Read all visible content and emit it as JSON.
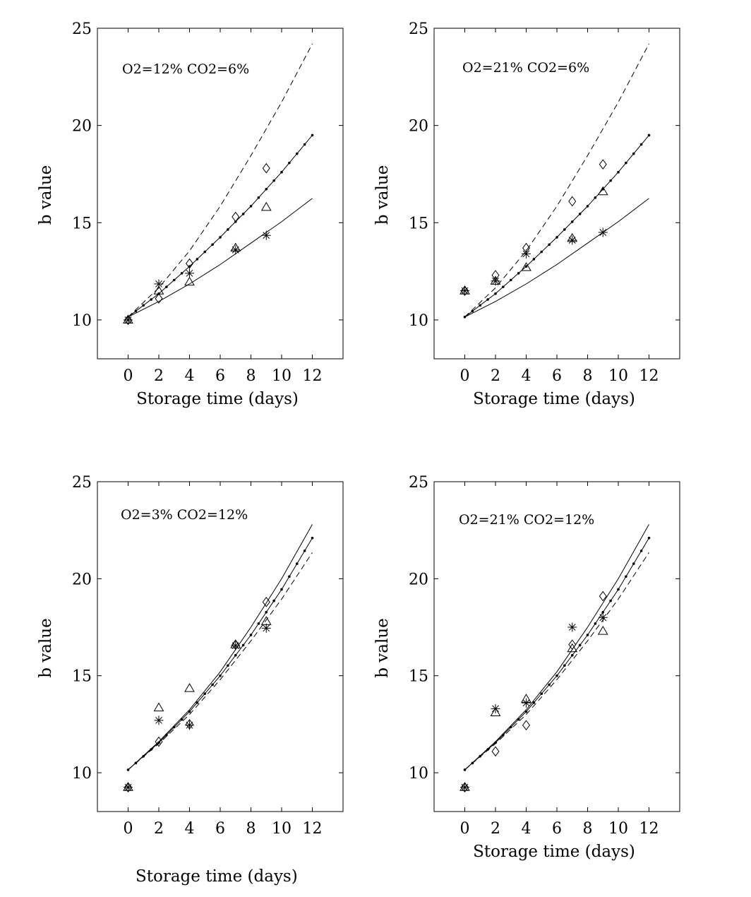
{
  "footer_label": "Storage time (days)",
  "chart_data": [
    {
      "type": "line",
      "annotation": "O2=12% CO2=6%",
      "xlabel": "Storage time (days)",
      "ylabel": "b value",
      "xlim": [
        -2,
        14
      ],
      "ylim": [
        8,
        25
      ],
      "xticks": [
        0,
        2,
        4,
        6,
        8,
        10,
        12
      ],
      "yticks": [
        10,
        15,
        20,
        25
      ],
      "model_lines": [
        {
          "style": "solid",
          "x": [
            0,
            2,
            4,
            6,
            8,
            10,
            12
          ],
          "y": [
            10.15,
            10.95,
            11.85,
            12.85,
            13.95,
            15.05,
            16.25
          ]
        },
        {
          "style": "dotted",
          "x": [
            0,
            2,
            4,
            6,
            8,
            10,
            12
          ],
          "y": [
            10.15,
            11.35,
            12.75,
            14.25,
            15.85,
            17.6,
            19.5
          ]
        },
        {
          "style": "dashed",
          "x": [
            0,
            2,
            4,
            6,
            8,
            10,
            12
          ],
          "y": [
            10.15,
            11.65,
            13.55,
            15.85,
            18.45,
            21.2,
            24.2
          ]
        }
      ],
      "observed": [
        {
          "marker": "diamond",
          "x": [
            0,
            2,
            4,
            7,
            9
          ],
          "y": [
            10.0,
            11.1,
            12.9,
            15.3,
            17.8
          ]
        },
        {
          "marker": "triangle",
          "x": [
            0,
            2,
            4,
            7,
            9
          ],
          "y": [
            10.0,
            11.5,
            11.95,
            13.7,
            15.8
          ]
        },
        {
          "marker": "asterisk",
          "x": [
            0,
            2,
            4,
            7,
            9
          ],
          "y": [
            10.0,
            11.85,
            12.4,
            13.6,
            14.35
          ]
        }
      ]
    },
    {
      "type": "line",
      "annotation": "O2=21% CO2=6%",
      "xlabel": "Storage time (days)",
      "ylabel": "b value",
      "xlim": [
        -2,
        14
      ],
      "ylim": [
        8,
        25
      ],
      "xticks": [
        0,
        2,
        4,
        6,
        8,
        10,
        12
      ],
      "yticks": [
        10,
        15,
        20,
        25
      ],
      "model_lines": [
        {
          "style": "solid",
          "x": [
            0,
            2,
            4,
            6,
            8,
            10,
            12
          ],
          "y": [
            10.15,
            10.95,
            11.85,
            12.85,
            13.95,
            15.05,
            16.25
          ]
        },
        {
          "style": "dotted",
          "x": [
            0,
            2,
            4,
            6,
            8,
            10,
            12
          ],
          "y": [
            10.15,
            11.35,
            12.75,
            14.25,
            15.85,
            17.6,
            19.5
          ]
        },
        {
          "style": "dashed",
          "x": [
            0,
            2,
            4,
            6,
            8,
            10,
            12
          ],
          "y": [
            10.15,
            11.65,
            13.55,
            15.85,
            18.45,
            21.2,
            24.2
          ]
        }
      ],
      "observed": [
        {
          "marker": "diamond",
          "x": [
            0,
            2,
            4,
            7,
            9
          ],
          "y": [
            11.5,
            12.3,
            13.7,
            16.1,
            18.0
          ]
        },
        {
          "marker": "triangle",
          "x": [
            0,
            2,
            4,
            7,
            9
          ],
          "y": [
            11.5,
            12.0,
            12.7,
            14.2,
            16.6
          ]
        },
        {
          "marker": "asterisk",
          "x": [
            0,
            2,
            4,
            7,
            9
          ],
          "y": [
            11.5,
            12.0,
            13.4,
            14.1,
            14.5
          ]
        }
      ]
    },
    {
      "type": "line",
      "annotation": "O2=3% CO2=12%",
      "xlabel": "",
      "ylabel": "b value",
      "xlim": [
        -2,
        14
      ],
      "ylim": [
        8,
        25
      ],
      "xticks": [
        0,
        2,
        4,
        6,
        8,
        10,
        12
      ],
      "yticks": [
        10,
        15,
        20,
        25
      ],
      "model_lines": [
        {
          "style": "solid",
          "x": [
            0,
            2,
            4,
            6,
            8,
            10,
            12
          ],
          "y": [
            10.15,
            11.6,
            13.25,
            15.2,
            17.5,
            20.0,
            22.8
          ]
        },
        {
          "style": "dotted",
          "x": [
            0,
            2,
            4,
            6,
            8,
            10,
            12
          ],
          "y": [
            10.15,
            11.55,
            13.15,
            15.0,
            17.1,
            19.45,
            22.1
          ]
        },
        {
          "style": "dashed",
          "x": [
            0,
            2,
            4,
            6,
            8,
            10,
            12
          ],
          "y": [
            10.15,
            11.5,
            13.0,
            14.8,
            16.8,
            18.95,
            21.35
          ]
        }
      ],
      "observed": [
        {
          "marker": "diamond",
          "x": [
            0,
            2,
            4,
            7,
            9
          ],
          "y": [
            9.25,
            11.6,
            12.5,
            16.6,
            18.8
          ]
        },
        {
          "marker": "triangle",
          "x": [
            0,
            2,
            4,
            7,
            9
          ],
          "y": [
            9.25,
            13.35,
            14.35,
            16.6,
            17.8
          ]
        },
        {
          "marker": "asterisk",
          "x": [
            0,
            2,
            4,
            7,
            9
          ],
          "y": [
            9.25,
            12.7,
            12.45,
            16.55,
            17.45
          ]
        }
      ]
    },
    {
      "type": "line",
      "annotation": "O2=21% CO2=12%",
      "xlabel": "Storage time (days)",
      "ylabel": "b value",
      "xlim": [
        -2,
        14
      ],
      "ylim": [
        8,
        25
      ],
      "xticks": [
        0,
        2,
        4,
        6,
        8,
        10,
        12
      ],
      "yticks": [
        10,
        15,
        20,
        25
      ],
      "model_lines": [
        {
          "style": "solid",
          "x": [
            0,
            2,
            4,
            6,
            8,
            10,
            12
          ],
          "y": [
            10.15,
            11.6,
            13.25,
            15.2,
            17.5,
            20.0,
            22.8
          ]
        },
        {
          "style": "dotted",
          "x": [
            0,
            2,
            4,
            6,
            8,
            10,
            12
          ],
          "y": [
            10.15,
            11.55,
            13.15,
            15.0,
            17.1,
            19.45,
            22.1
          ]
        },
        {
          "style": "dashed",
          "x": [
            0,
            2,
            4,
            6,
            8,
            10,
            12
          ],
          "y": [
            10.15,
            11.5,
            13.0,
            14.8,
            16.8,
            18.95,
            21.35
          ]
        }
      ],
      "observed": [
        {
          "marker": "diamond",
          "x": [
            0,
            2,
            4,
            7,
            9
          ],
          "y": [
            9.25,
            11.1,
            12.45,
            16.6,
            19.1
          ]
        },
        {
          "marker": "triangle",
          "x": [
            0,
            2,
            4,
            7,
            9
          ],
          "y": [
            9.25,
            13.1,
            13.8,
            16.4,
            17.3
          ]
        },
        {
          "marker": "asterisk",
          "x": [
            0,
            2,
            4,
            7,
            9
          ],
          "y": [
            9.25,
            13.3,
            13.6,
            17.5,
            18.0
          ]
        }
      ]
    }
  ]
}
